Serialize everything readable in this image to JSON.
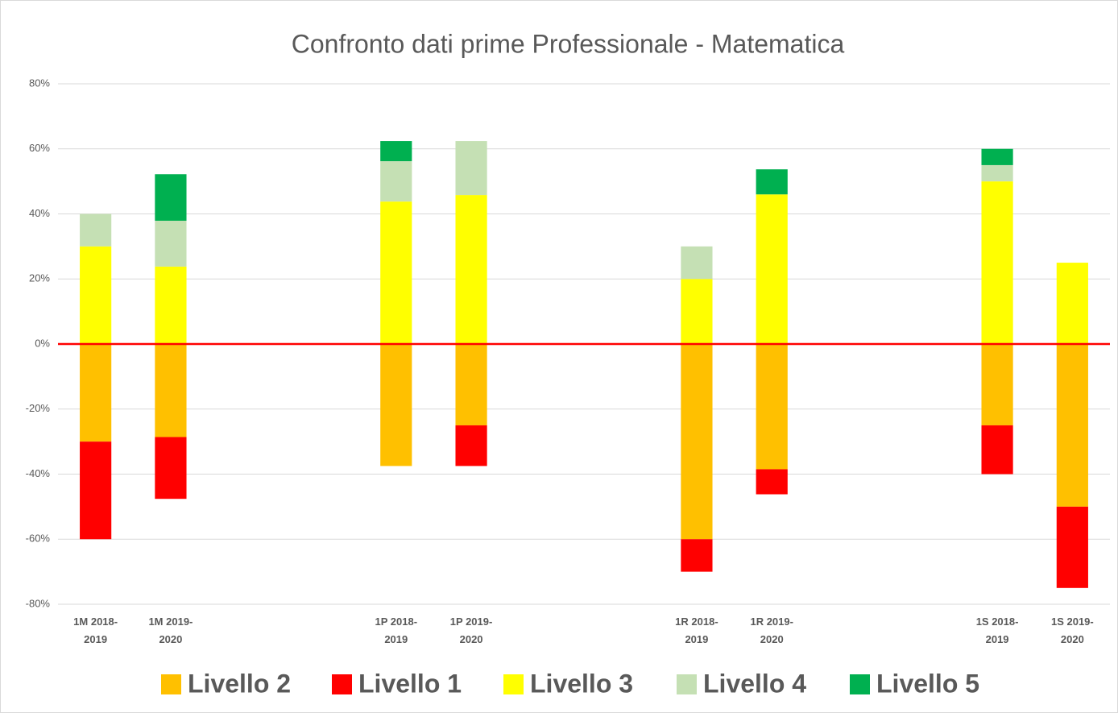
{
  "chart_data": {
    "type": "diverging_stacked_bar",
    "title": "Confronto dati prime Professionale - Matematica",
    "categories": [
      "1M 2018-2019",
      "1M 2019-2020",
      null,
      null,
      "1P 2018-2019",
      "1P 2019-2020",
      null,
      null,
      "1R 2018-2019",
      "1R 2019-2020",
      null,
      null,
      "1S 2018-2019",
      "1S 2019-2020"
    ],
    "series": [
      {
        "name": "Livello 2",
        "color": "#ffc000",
        "values": [
          -30,
          -28.6,
          null,
          null,
          -37.5,
          -25,
          null,
          null,
          -60,
          -38.5,
          null,
          null,
          -25,
          -50
        ]
      },
      {
        "name": "Livello 1",
        "color": "#ff0000",
        "values": [
          -30,
          -19,
          null,
          null,
          0,
          -12.5,
          null,
          null,
          -10,
          -7.7,
          null,
          null,
          -15,
          -25
        ]
      },
      {
        "name": "Livello 3",
        "color": "#ffff00",
        "values": [
          30,
          23.8,
          null,
          null,
          43.8,
          45.8,
          null,
          null,
          20,
          46,
          null,
          null,
          50,
          25
        ]
      },
      {
        "name": "Livello 4",
        "color": "#c5e0b4",
        "values": [
          10,
          14.1,
          null,
          null,
          12.4,
          16.6,
          null,
          null,
          10,
          0,
          null,
          null,
          5,
          0
        ]
      },
      {
        "name": "Livello 5",
        "color": "#00b050",
        "values": [
          0,
          14.3,
          null,
          null,
          6.2,
          0,
          null,
          null,
          0,
          7.7,
          null,
          null,
          5,
          0
        ]
      }
    ],
    "ylim": [
      -80,
      80
    ],
    "yticks": [
      {
        "value": -80,
        "label": "-80%"
      },
      {
        "value": -60,
        "label": "-60%"
      },
      {
        "value": -40,
        "label": "-40%"
      },
      {
        "value": -20,
        "label": "-20%"
      },
      {
        "value": 0,
        "label": "0%"
      },
      {
        "value": 20,
        "label": "20%"
      },
      {
        "value": 40,
        "label": "40%"
      },
      {
        "value": 60,
        "label": "60%"
      },
      {
        "value": 80,
        "label": "80%"
      }
    ],
    "grid": true,
    "zero_line_color": "#ff0000",
    "legend": "bottom"
  }
}
